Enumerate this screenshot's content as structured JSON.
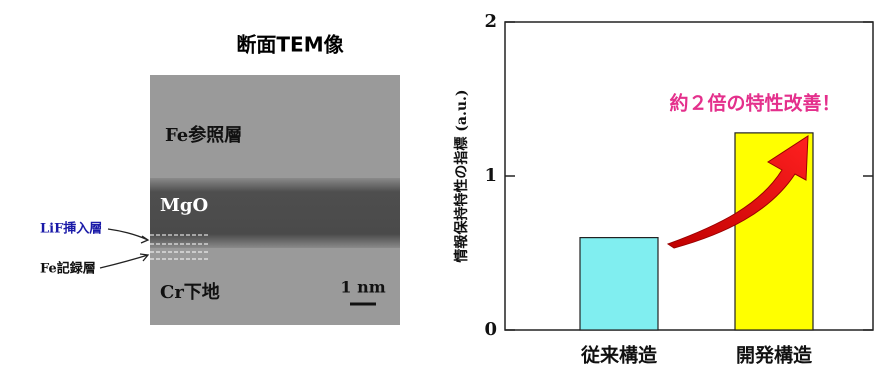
{
  "tem_image": {
    "title": "断面TEM像",
    "reference_layer": "Fe参照層",
    "barrier": "MgO",
    "insert_layer": "LiF挿入層",
    "recording_layer": "Fe記録層",
    "underlayer": "Cr下地",
    "scale_bar": "1 nm"
  },
  "chart_data": {
    "type": "bar",
    "y_label": "情報保持特性の指標 (a.u.)",
    "annotation": "約２倍の特性改善！",
    "categories": [
      "従来構造",
      "開発構造"
    ],
    "values": [
      0.6,
      1.28
    ],
    "colors": [
      "#80eef0",
      "#ffff00"
    ],
    "ylim": [
      0,
      2
    ],
    "yticks": [
      0,
      1,
      2
    ]
  }
}
